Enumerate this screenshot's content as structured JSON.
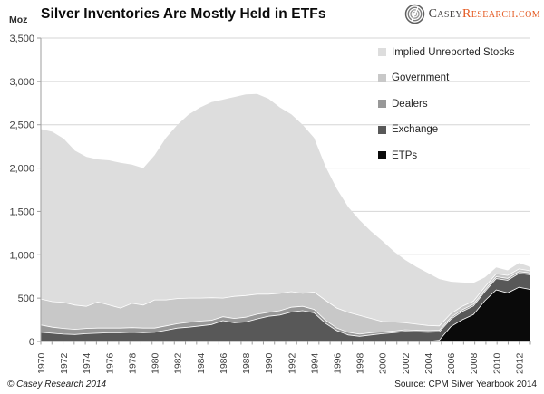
{
  "header": {
    "title": "Silver Inventories Are Mostly Held in ETFs",
    "y_unit": "Moz",
    "logo": {
      "part1": "Casey",
      "part2": "Research.com"
    }
  },
  "footer": {
    "copyright": "© Casey Research 2014",
    "source": "Source: CPM Silver Yearbook 2014"
  },
  "legend": [
    {
      "label": "Implied Unreported Stocks",
      "color": "#dddddd"
    },
    {
      "label": "Government",
      "color": "#c8c8c8"
    },
    {
      "label": "Dealers",
      "color": "#989898"
    },
    {
      "label": "Exchange",
      "color": "#585858"
    },
    {
      "label": "ETPs",
      "color": "#0a0a0a"
    }
  ],
  "colors": {
    "grid": "#d6d6d6",
    "axis": "#9e9e9e",
    "tick_label": "#3d3d3d",
    "seam": "#ffffff",
    "accent_orange": "#e4571e"
  },
  "chart_data": {
    "type": "area",
    "stacked": true,
    "title": "Silver Inventories Are Mostly Held in ETFs",
    "xlabel": "",
    "ylabel": "Moz",
    "ylim": [
      0,
      3500
    ],
    "grid": true,
    "legend_position": "upper right",
    "x": [
      1970,
      1971,
      1972,
      1973,
      1974,
      1975,
      1976,
      1977,
      1978,
      1979,
      1980,
      1981,
      1982,
      1983,
      1984,
      1985,
      1986,
      1987,
      1988,
      1989,
      1990,
      1991,
      1992,
      1993,
      1994,
      1995,
      1996,
      1997,
      1998,
      1999,
      2000,
      2001,
      2002,
      2003,
      2004,
      2005,
      2006,
      2007,
      2008,
      2009,
      2010,
      2011,
      2012,
      2013
    ],
    "x_tick_labels": [
      "1970",
      "1972",
      "1974",
      "1976",
      "1978",
      "1980",
      "1982",
      "1984",
      "1986",
      "1988",
      "1990",
      "1992",
      "1994",
      "1996",
      "1998",
      "2000",
      "2002",
      "2004",
      "2006",
      "2008",
      "2010",
      "2012"
    ],
    "y_ticks": [
      0,
      500,
      1000,
      1500,
      2000,
      2500,
      3000,
      3500
    ],
    "y_tick_labels": [
      "0",
      "500",
      "1,000",
      "1,500",
      "2,000",
      "2,500",
      "3,000",
      "3,500"
    ],
    "series": [
      {
        "name": "ETPs",
        "color": "#0a0a0a",
        "values": [
          0,
          0,
          0,
          0,
          0,
          0,
          0,
          0,
          0,
          0,
          0,
          0,
          0,
          0,
          0,
          0,
          0,
          0,
          0,
          0,
          0,
          0,
          0,
          0,
          0,
          0,
          0,
          0,
          0,
          0,
          0,
          0,
          0,
          0,
          0,
          15,
          170,
          250,
          310,
          470,
          595,
          560,
          625,
          600
        ]
      },
      {
        "name": "Exchange",
        "color": "#585858",
        "values": [
          105,
          95,
          85,
          80,
          90,
          95,
          100,
          100,
          105,
          100,
          105,
          130,
          155,
          165,
          180,
          195,
          240,
          215,
          225,
          260,
          290,
          305,
          340,
          355,
          330,
          210,
          125,
          75,
          60,
          75,
          90,
          100,
          115,
          110,
          105,
          95,
          85,
          95,
          100,
          105,
          130,
          145,
          160,
          170
        ]
      },
      {
        "name": "Dealers",
        "color": "#989898",
        "values": [
          85,
          70,
          65,
          60,
          60,
          60,
          55,
          55,
          55,
          55,
          50,
          50,
          50,
          55,
          55,
          50,
          45,
          50,
          55,
          55,
          45,
          50,
          55,
          50,
          40,
          35,
          30,
          30,
          25,
          25,
          20,
          20,
          20,
          20,
          20,
          20,
          20,
          20,
          20,
          20,
          22,
          22,
          22,
          20
        ]
      },
      {
        "name": "Government",
        "color": "#c8c8c8",
        "values": [
          300,
          295,
          300,
          280,
          255,
          300,
          265,
          230,
          280,
          265,
          325,
          300,
          290,
          280,
          265,
          260,
          215,
          255,
          250,
          230,
          210,
          200,
          180,
          150,
          200,
          230,
          230,
          230,
          215,
          165,
          120,
          105,
          80,
          70,
          60,
          50,
          45,
          40,
          35,
          35,
          35,
          35,
          30,
          25
        ]
      },
      {
        "name": "Implied Unreported Stocks",
        "color": "#dddddd",
        "values": [
          1960,
          1960,
          1890,
          1780,
          1725,
          1645,
          1670,
          1675,
          1600,
          1580,
          1670,
          1870,
          2005,
          2120,
          2200,
          2255,
          2290,
          2300,
          2320,
          2310,
          2255,
          2145,
          2045,
          1945,
          1780,
          1545,
          1375,
          1215,
          1100,
          1005,
          930,
          815,
          725,
          660,
          605,
          540,
          370,
          275,
          210,
          110,
          73,
          58,
          68,
          45
        ]
      }
    ]
  }
}
